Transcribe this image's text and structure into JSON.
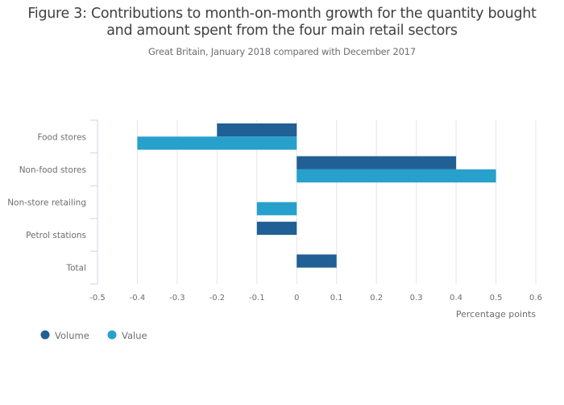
{
  "chart_data": {
    "type": "bar",
    "orientation": "horizontal",
    "title": "Figure 3: Contributions to month-on-month growth for the quantity bought and amount spent from the four main retail sectors",
    "title_lines": [
      "Figure 3: Contributions to month-on-month growth for the quantity bought",
      "and amount spent from the four main retail sectors"
    ],
    "subtitle": "Great Britain, January 2018 compared with December 2017",
    "categories": [
      "Food stores",
      "Non-food stores",
      "Non-store retailing",
      "Petrol stations",
      "Total"
    ],
    "series": [
      {
        "name": "Volume",
        "color": "#206095",
        "values": [
          -0.2,
          0.4,
          0,
          -0.1,
          0.1
        ]
      },
      {
        "name": "Value",
        "color": "#27a0cc",
        "values": [
          -0.4,
          0.5,
          -0.1,
          0,
          0
        ]
      }
    ],
    "xlabel": "Percentage points",
    "ylabel": "",
    "xlim": [
      -0.5,
      0.6
    ],
    "xticks": [
      -0.5,
      -0.4,
      -0.3,
      -0.2,
      -0.1,
      0,
      0.1,
      0.2,
      0.3,
      0.4,
      0.5,
      0.6
    ],
    "xtick_labels": [
      "-0.5",
      "-0.4",
      "-0.3",
      "-0.2",
      "-0.1",
      "0",
      "0.1",
      "0.2",
      "0.3",
      "0.4",
      "0.5",
      "0.6"
    ],
    "grid": true,
    "legend_position": "bottom-left"
  }
}
